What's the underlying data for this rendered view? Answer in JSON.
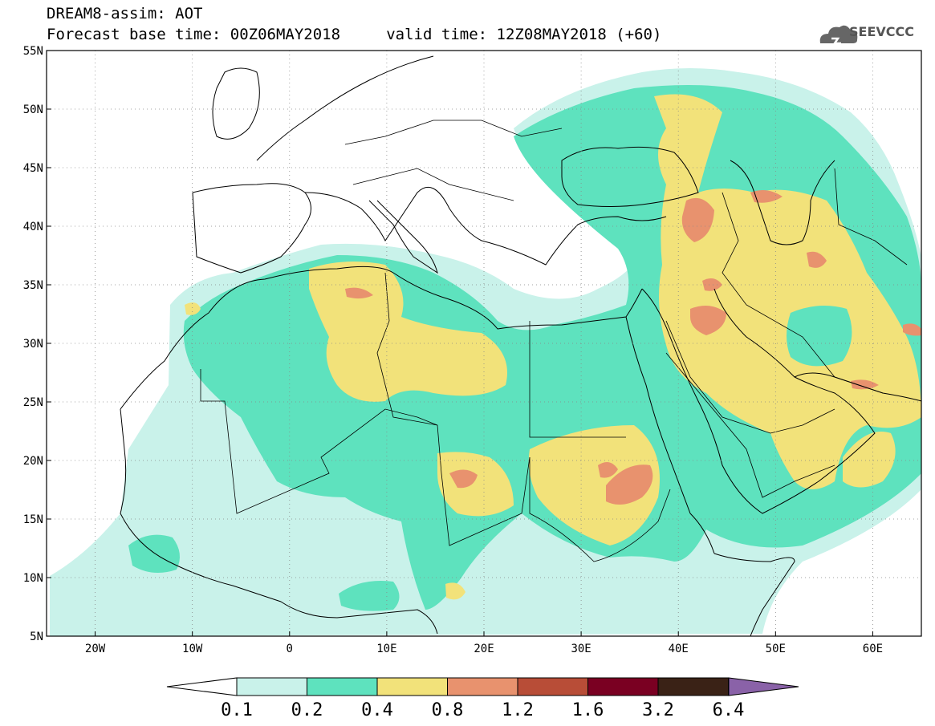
{
  "header": {
    "model_line": "DREAM8-assim: AOT",
    "time_line": "Forecast base time: 00Z06MAY2018     valid time: 12Z08MAY2018 (+60)",
    "logo_text": "SEEVCCC",
    "logo_icon": "cloud-logo-icon"
  },
  "map": {
    "lon_range": [
      -25,
      65
    ],
    "lat_range": [
      5,
      55
    ],
    "lat_labels": [
      "55N",
      "50N",
      "45N",
      "40N",
      "35N",
      "30N",
      "25N",
      "20N",
      "15N",
      "10N",
      "5N"
    ],
    "lat_values": [
      55,
      50,
      45,
      40,
      35,
      30,
      25,
      20,
      15,
      10,
      5
    ],
    "lon_labels": [
      "20W",
      "10W",
      "0",
      "10E",
      "20E",
      "30E",
      "40E",
      "50E",
      "60E"
    ],
    "lon_values": [
      -20,
      -10,
      0,
      10,
      20,
      30,
      40,
      50,
      60
    ],
    "grid": "dotted"
  },
  "colorbar": {
    "labels": [
      "0.1",
      "0.2",
      "0.4",
      "0.8",
      "1.2",
      "1.6",
      "3.2",
      "6.4"
    ],
    "colors": [
      "#c9f2ea",
      "#5ee2be",
      "#f2e27a",
      "#e8926e",
      "#b84d37",
      "#7a0022",
      "#3a2216",
      "#8a62a8"
    ]
  },
  "aot_colors": {
    "level_0_1": "#c9f2ea",
    "level_0_2": "#5ee2be",
    "level_0_4": "#f2e27a",
    "level_0_8": "#e8926e"
  }
}
